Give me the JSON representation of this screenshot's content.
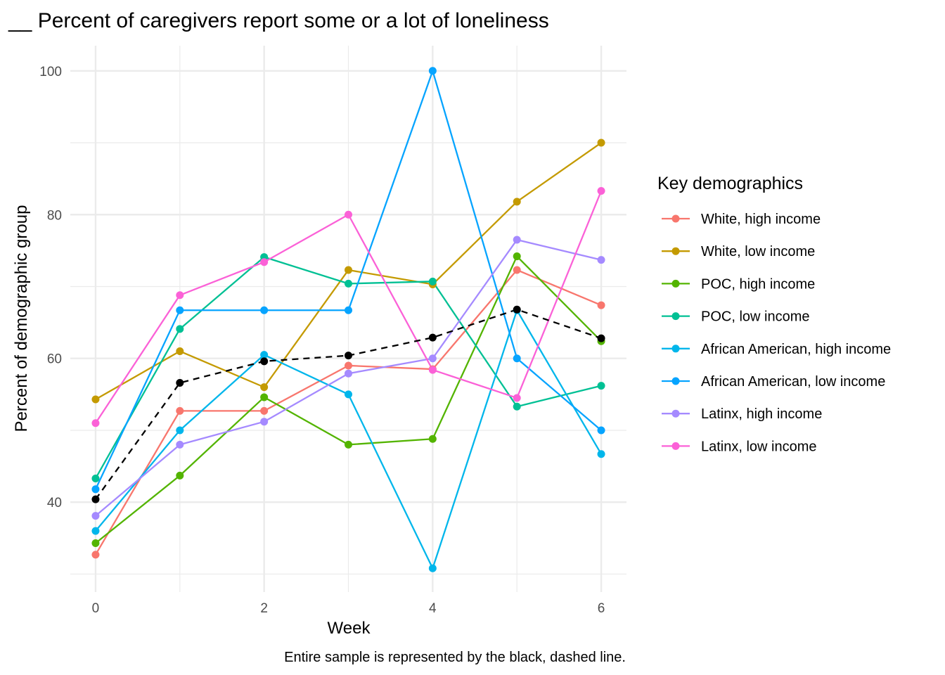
{
  "chart_data": {
    "type": "line",
    "title": "__ Percent of caregivers report some or a lot of loneliness",
    "xlabel": "Week",
    "ylabel": "Percent of demographic group",
    "caption": "Entire sample is represented by the black, dashed line.",
    "legend_title": "Key demographics",
    "legend_position": "right",
    "grid": true,
    "xlim": [
      -0.3,
      6.3
    ],
    "ylim": [
      27.5,
      103.5
    ],
    "x_ticks": [
      0,
      2,
      4,
      6
    ],
    "y_ticks": [
      40,
      60,
      80,
      100
    ],
    "x": [
      0,
      1,
      2,
      3,
      4,
      5,
      6
    ],
    "series": [
      {
        "name": "White, high income",
        "color": "#F8766D",
        "values": [
          32.7,
          52.7,
          52.7,
          59.0,
          58.5,
          72.3,
          67.4
        ]
      },
      {
        "name": "White, low income",
        "color": "#C49A00",
        "values": [
          54.3,
          61.0,
          56.0,
          72.3,
          70.3,
          81.8,
          90.0
        ]
      },
      {
        "name": "POC, high income",
        "color": "#53B400",
        "values": [
          34.3,
          43.7,
          54.6,
          48.0,
          48.8,
          74.2,
          62.4
        ]
      },
      {
        "name": "POC, low income",
        "color": "#00C094",
        "values": [
          43.3,
          64.1,
          74.1,
          70.4,
          70.7,
          53.3,
          56.2
        ]
      },
      {
        "name": "African American, high income",
        "color": "#00B6EB",
        "values": [
          36.0,
          50.0,
          60.5,
          55.0,
          30.8,
          66.7,
          46.7
        ]
      },
      {
        "name": "African American, low income",
        "color": "#06A4FF",
        "values": [
          41.8,
          66.7,
          66.7,
          66.7,
          100.0,
          60.0,
          50.0
        ]
      },
      {
        "name": "Latinx, high income",
        "color": "#A58AFF",
        "values": [
          38.1,
          48.0,
          51.2,
          57.9,
          60.0,
          76.5,
          73.7
        ]
      },
      {
        "name": "Latinx, low income",
        "color": "#FB61D7",
        "values": [
          51.0,
          68.8,
          73.4,
          80.0,
          58.4,
          54.5,
          83.3
        ]
      }
    ],
    "overall": {
      "color": "#000000",
      "dashed": true,
      "values": [
        40.4,
        56.6,
        59.6,
        60.4,
        62.9,
        66.8,
        62.8
      ]
    }
  }
}
